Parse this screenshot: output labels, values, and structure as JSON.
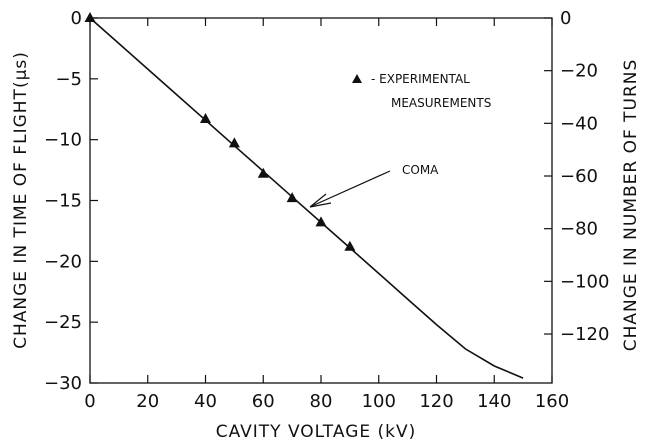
{
  "chart_data": {
    "type": "line",
    "title": "",
    "xlabel": "CAVITY VOLTAGE (kV)",
    "ylabel": "CHANGE IN TIME OF FLIGHT(μs)",
    "y2label": "CHANGE IN NUMBER OF TURNS",
    "xlim": [
      0,
      160
    ],
    "ylim": [
      -30,
      0
    ],
    "y2lim": [
      -138.6,
      0
    ],
    "x_ticks": [
      0,
      20,
      40,
      60,
      80,
      100,
      120,
      140,
      160
    ],
    "y_ticks": [
      0,
      -5,
      -10,
      -15,
      -20,
      -25,
      -30
    ],
    "y2_ticks": [
      0,
      -20,
      -40,
      -60,
      -80,
      -100,
      -120
    ],
    "grid": false,
    "legend_position": "top-right",
    "series": [
      {
        "name": "",
        "kind": "line",
        "x": [
          0,
          10,
          20,
          30,
          40,
          50,
          60,
          70,
          80,
          90,
          100,
          110,
          120,
          130,
          140,
          150
        ],
        "y": [
          0,
          -2.1,
          -4.2,
          -6.3,
          -8.4,
          -10.5,
          -12.6,
          -14.7,
          -16.8,
          -18.9,
          -21.0,
          -23.1,
          -25.2,
          -27.2,
          -28.6,
          -29.6
        ]
      },
      {
        "name": "EXPERIMENTAL MEASUREMENTS",
        "kind": "scatter",
        "marker": "triangle",
        "x": [
          0,
          40,
          50,
          60,
          70,
          80,
          90
        ],
        "y": [
          0,
          -8.3,
          -10.3,
          -12.8,
          -14.8,
          -16.8,
          -18.8
        ]
      }
    ],
    "legend": {
      "marker": "triangle",
      "line1": "-  EXPERIMENTAL",
      "line2": "MEASUREMENTS"
    },
    "annotations": [
      {
        "text": "COMA",
        "points_to": {
          "x": 71,
          "y": -15.1
        }
      }
    ],
    "color": "#111111"
  }
}
